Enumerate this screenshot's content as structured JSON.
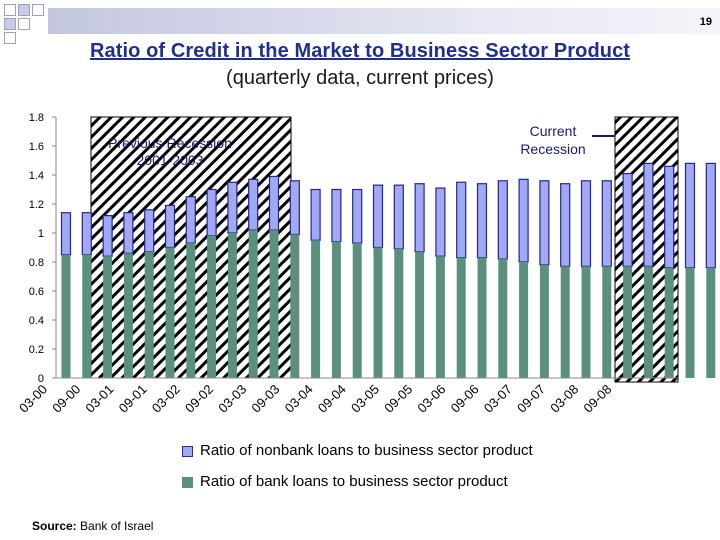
{
  "slide_number": "19",
  "title": "Ratio of Credit in the Market to Business Sector Product",
  "subtitle": "(quarterly data, current prices)",
  "source": {
    "label": "Source:",
    "text": "Bank of Israel"
  },
  "colors": {
    "title": "#1f2f8f",
    "nonbank": "#a3a8f2",
    "bank": "#5b8f7e",
    "hatch": "#000000"
  },
  "chart_data": {
    "type": "bar",
    "stacked": true,
    "ylim": [
      0,
      1.8
    ],
    "yticks": [
      "0",
      "0.2",
      "0.4",
      "0.6",
      "0.8",
      "1",
      "1.2",
      "1.4",
      "1.6",
      "1.8"
    ],
    "grid": false,
    "x_tick_labels": [
      "03-00",
      "09-00",
      "03-01",
      "09-01",
      "03-02",
      "09-02",
      "03-03",
      "09-03",
      "03-04",
      "09-04",
      "03-05",
      "09-05",
      "03-06",
      "09-06",
      "03-07",
      "09-07",
      "03-08",
      "09-08"
    ],
    "series": [
      {
        "name": "Ratio of bank loans to business sector product",
        "values": [
          0.85,
          0.85,
          0.84,
          0.86,
          0.87,
          0.9,
          0.93,
          0.98,
          1.0,
          1.02,
          1.02,
          0.99,
          0.95,
          0.94,
          0.93,
          0.9,
          0.89,
          0.87,
          0.84,
          0.83,
          0.83,
          0.82,
          0.8,
          0.78,
          0.77,
          0.77,
          0.77,
          0.77,
          0.77,
          0.76,
          0.76,
          0.76
        ]
      },
      {
        "name": "Ratio of nonbank loans to business sector product",
        "values": [
          0.29,
          0.29,
          0.28,
          0.28,
          0.29,
          0.29,
          0.32,
          0.32,
          0.35,
          0.35,
          0.37,
          0.37,
          0.35,
          0.36,
          0.37,
          0.43,
          0.44,
          0.47,
          0.47,
          0.52,
          0.51,
          0.54,
          0.57,
          0.58,
          0.57,
          0.59,
          0.59,
          0.64,
          0.71,
          0.7,
          0.72,
          0.72
        ]
      }
    ],
    "annotations": [
      {
        "text_lines": [
          "Previous Recession",
          "2001-2003"
        ]
      },
      {
        "text_lines": [
          "Current",
          "Recession"
        ]
      }
    ],
    "legend": {
      "placement": "bottom",
      "entries": [
        "Ratio of nonbank loans to business sector product",
        "Ratio of bank loans to business sector product"
      ]
    }
  }
}
